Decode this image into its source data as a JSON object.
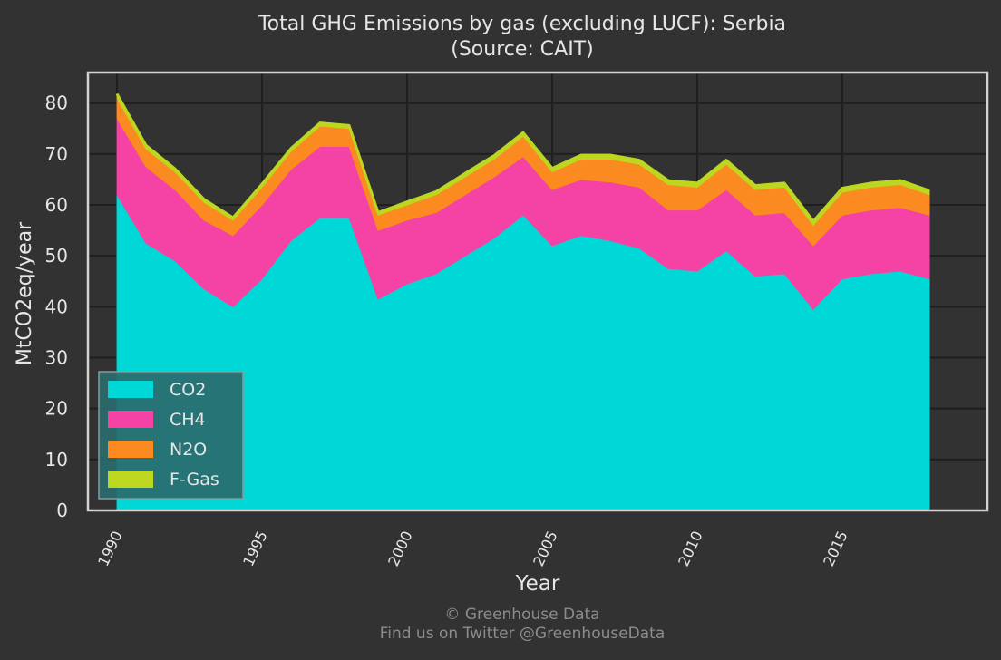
{
  "chart_data": {
    "type": "area",
    "stacked": true,
    "title": "Total GHG Emissions by gas (excluding LUCF): Serbia",
    "subtitle": "(Source: CAIT)",
    "xlabel": "Year",
    "ylabel": "MtCO2eq/year",
    "xlim": [
      1989,
      2020
    ],
    "ylim": [
      0,
      86
    ],
    "yticks": [
      0,
      10,
      20,
      30,
      40,
      50,
      60,
      70,
      80
    ],
    "xticks": [
      1990,
      1995,
      2000,
      2005,
      2010,
      2015
    ],
    "grid": true,
    "legend_position": "lower-left",
    "background": "#323232",
    "plot_border_color": "#d4d4d4",
    "grid_color": "#1f1f1f",
    "x": [
      1990,
      1991,
      1992,
      1993,
      1994,
      1995,
      1996,
      1997,
      1998,
      1999,
      2000,
      2001,
      2002,
      2003,
      2004,
      2005,
      2006,
      2007,
      2008,
      2009,
      2010,
      2011,
      2012,
      2013,
      2014,
      2015,
      2016,
      2017,
      2018
    ],
    "series": [
      {
        "name": "CO2",
        "color": "#00d8d8",
        "values": [
          62,
          52.5,
          49,
          43.5,
          40,
          45.5,
          53,
          57.5,
          57.5,
          41.5,
          44.5,
          46.5,
          50,
          53.5,
          58,
          52,
          54,
          53,
          51.5,
          47.5,
          47,
          51,
          46,
          46.5,
          39.5,
          45.5,
          46.5,
          47,
          45.5
        ]
      },
      {
        "name": "CH4",
        "color": "#f542a5",
        "values": [
          15,
          15,
          14,
          13.5,
          14,
          14.5,
          14,
          14,
          14,
          13.5,
          12.5,
          12,
          12,
          12,
          11.5,
          11,
          11,
          11.5,
          12,
          11.5,
          12,
          12,
          12,
          12,
          12.5,
          12.5,
          12.5,
          12.5,
          12.5
        ]
      },
      {
        "name": "N2O",
        "color": "#fb8a20",
        "values": [
          4,
          3.5,
          3.5,
          3.5,
          3,
          3.5,
          3.5,
          4,
          3.5,
          3,
          3,
          3.5,
          3.5,
          3.5,
          4,
          3.5,
          4,
          4.5,
          4.5,
          5,
          4.5,
          5,
          5,
          5,
          4,
          4.5,
          4.5,
          4.5,
          4
        ]
      },
      {
        "name": "F-Gas",
        "color": "#bdd61f",
        "values": [
          0.8,
          0.7,
          0.6,
          0.6,
          0.5,
          0.6,
          0.6,
          0.6,
          0.6,
          0.5,
          0.6,
          0.6,
          0.7,
          0.7,
          0.7,
          0.7,
          0.8,
          0.8,
          0.8,
          0.8,
          0.8,
          0.8,
          0.8,
          0.8,
          0.8,
          0.8,
          0.8,
          0.8,
          0.8
        ]
      }
    ]
  },
  "footer": {
    "credit": "© Greenhouse Data",
    "twitter": "Find us on Twitter @GreenhouseData"
  }
}
